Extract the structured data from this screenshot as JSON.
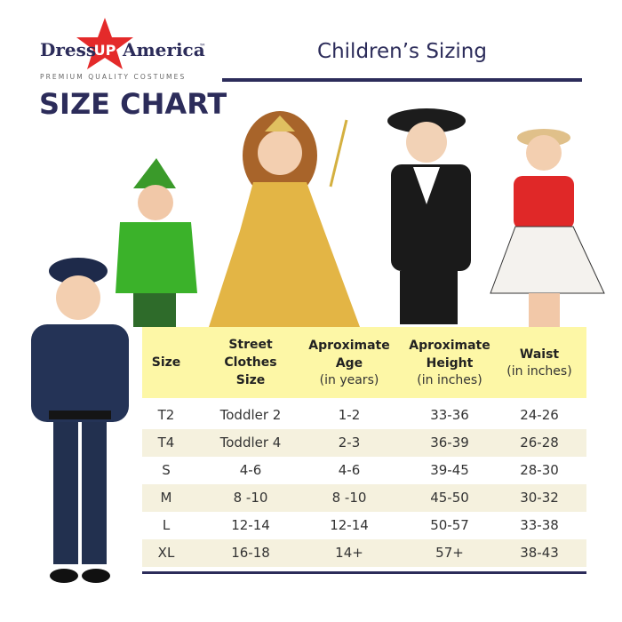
{
  "logo": {
    "left": "Dress",
    "star": "UP",
    "right": "America",
    "mark": "™",
    "tagline": "PREMIUM QUALITY COSTUMES"
  },
  "header": {
    "title": "SIZE CHART",
    "subtitle": "Children’s Sizing"
  },
  "table": {
    "headers": [
      {
        "title": "Size"
      },
      {
        "title": "Street Clothes Size"
      },
      {
        "title": "Aproximate Age",
        "sub": "(in years)"
      },
      {
        "title": "Aproximate Height",
        "sub": "(in inches)"
      },
      {
        "title": "Waist",
        "sub": "(in inches)"
      }
    ],
    "rows": [
      [
        "T2",
        "Toddler 2",
        "1-2",
        "33-36",
        "24-26"
      ],
      [
        "T4",
        "Toddler 4",
        "2-3",
        "36-39",
        "26-28"
      ],
      [
        "S",
        "4-6",
        "4-6",
        "39-45",
        "28-30"
      ],
      [
        "M",
        "8 -10",
        "8 -10",
        "45-50",
        "30-32"
      ],
      [
        "L",
        "12-14",
        "12-14",
        "50-57",
        "33-38"
      ],
      [
        "XL",
        "16-18",
        "14+",
        "57+",
        "38-43"
      ]
    ]
  }
}
